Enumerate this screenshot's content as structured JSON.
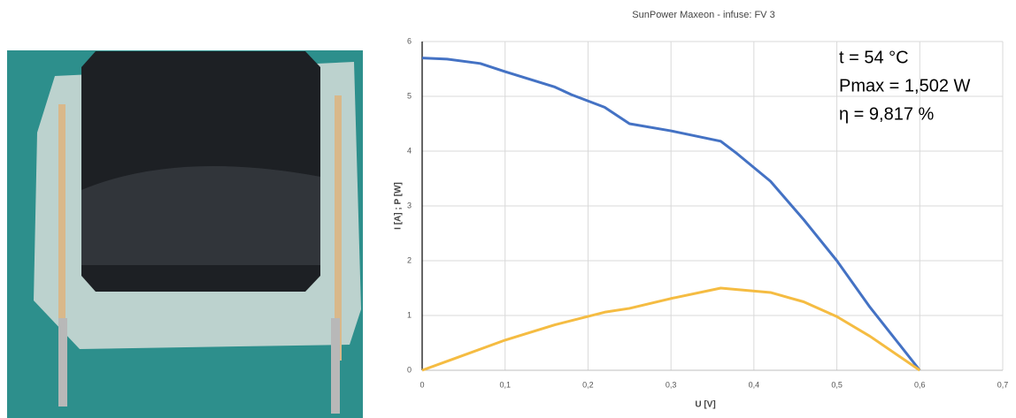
{
  "chart_data": {
    "type": "line",
    "title": "SunPower Maxeon - infuse: FV 3",
    "x_label": "U [V]",
    "y_label": "I [A] ; P [W]",
    "annotations": [
      "t = 54 °C",
      "Pmax = 1,502 W",
      "η = 9,817 %"
    ],
    "xlim": [
      0,
      0.7
    ],
    "xticks": [
      0,
      {
        "value": 0.1,
        "label": "0,1"
      },
      {
        "value": 0.2,
        "label": "0,2"
      },
      {
        "value": 0.3,
        "label": "0,3"
      },
      {
        "value": 0.4,
        "label": "0,4"
      },
      {
        "value": 0.5,
        "label": "0,5"
      },
      {
        "value": 0.6,
        "label": "0,6"
      },
      {
        "value": 0.7,
        "label": "0,7"
      }
    ],
    "ylim": [
      0,
      6
    ],
    "yticks": [
      0,
      1,
      2,
      3,
      4,
      5,
      6
    ],
    "grid": true,
    "series": [
      {
        "color": "#4472c4",
        "x": [
          0,
          0.03,
          0.07,
          0.1,
          0.16,
          0.18,
          0.22,
          0.25,
          0.3,
          0.36,
          0.38,
          0.42,
          0.46,
          0.5,
          0.54,
          0.6
        ],
        "values": [
          5.7,
          5.68,
          5.6,
          5.45,
          5.17,
          5.03,
          4.8,
          4.5,
          4.37,
          4.18,
          3.95,
          3.45,
          2.75,
          2.0,
          1.15,
          0
        ]
      },
      {
        "color": "#f5bc42",
        "x": [
          0,
          0.1,
          0.16,
          0.22,
          0.25,
          0.3,
          0.36,
          0.42,
          0.46,
          0.5,
          0.54,
          0.6
        ],
        "values": [
          0,
          0.55,
          0.83,
          1.06,
          1.13,
          1.31,
          1.5,
          1.42,
          1.25,
          0.98,
          0.62,
          0
        ]
      }
    ]
  }
}
